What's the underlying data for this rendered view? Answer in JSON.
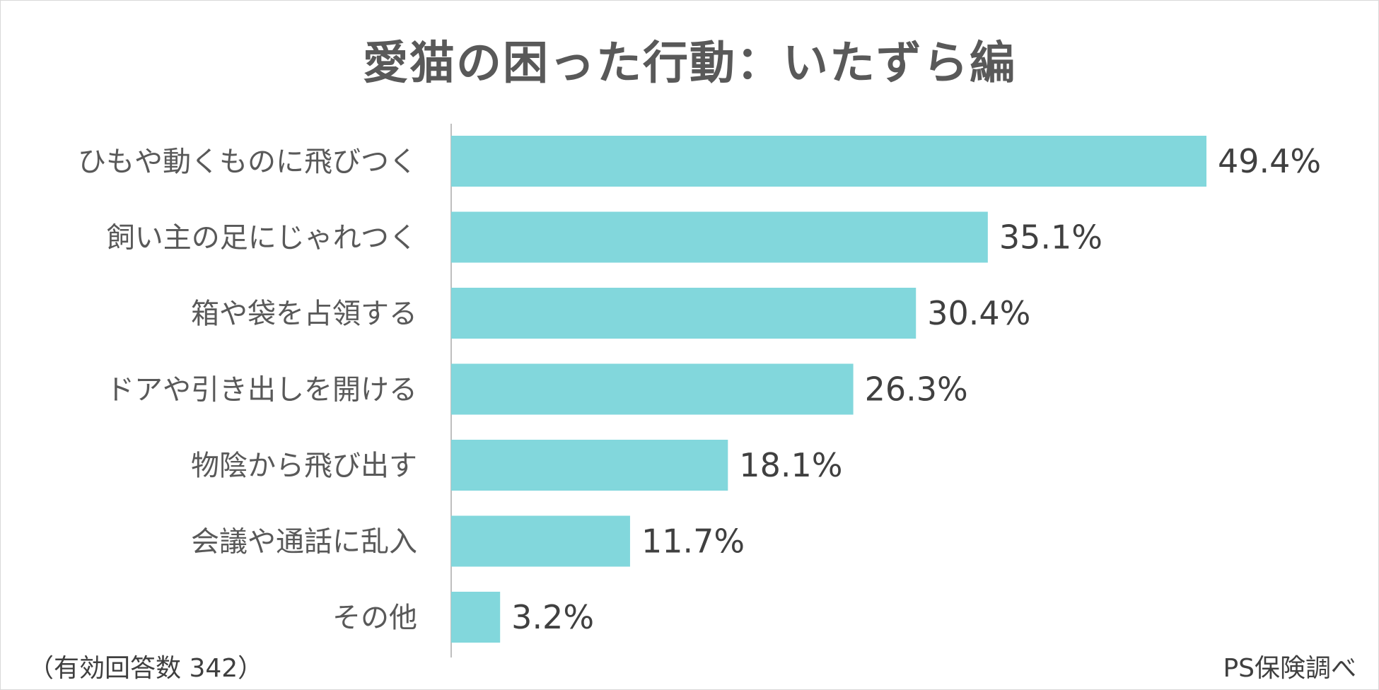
{
  "chart_data": {
    "type": "bar",
    "orientation": "horizontal",
    "title": "愛猫の困った行動：いたずら編",
    "categories": [
      "ひもや動くものに飛びつく",
      "飼い主の足にじゃれつく",
      "箱や袋を占領する",
      "ドアや引き出しを開ける",
      "物陰から飛び出す",
      "会議や通話に乱入",
      "その他"
    ],
    "values": [
      49.4,
      35.1,
      30.4,
      26.3,
      18.1,
      11.7,
      3.2
    ],
    "value_labels": [
      "49.4%",
      "35.1%",
      "30.4%",
      "26.3%",
      "18.1%",
      "11.7%",
      "3.2%"
    ],
    "unit": "%",
    "xlim": [
      0,
      54
    ],
    "grid": false,
    "legend": "none",
    "bar_color": "#82d7dc",
    "axis_color": "#bfbfbf"
  },
  "footnote_left": "（有効回答数 342）",
  "footnote_right": "PS保険調べ"
}
